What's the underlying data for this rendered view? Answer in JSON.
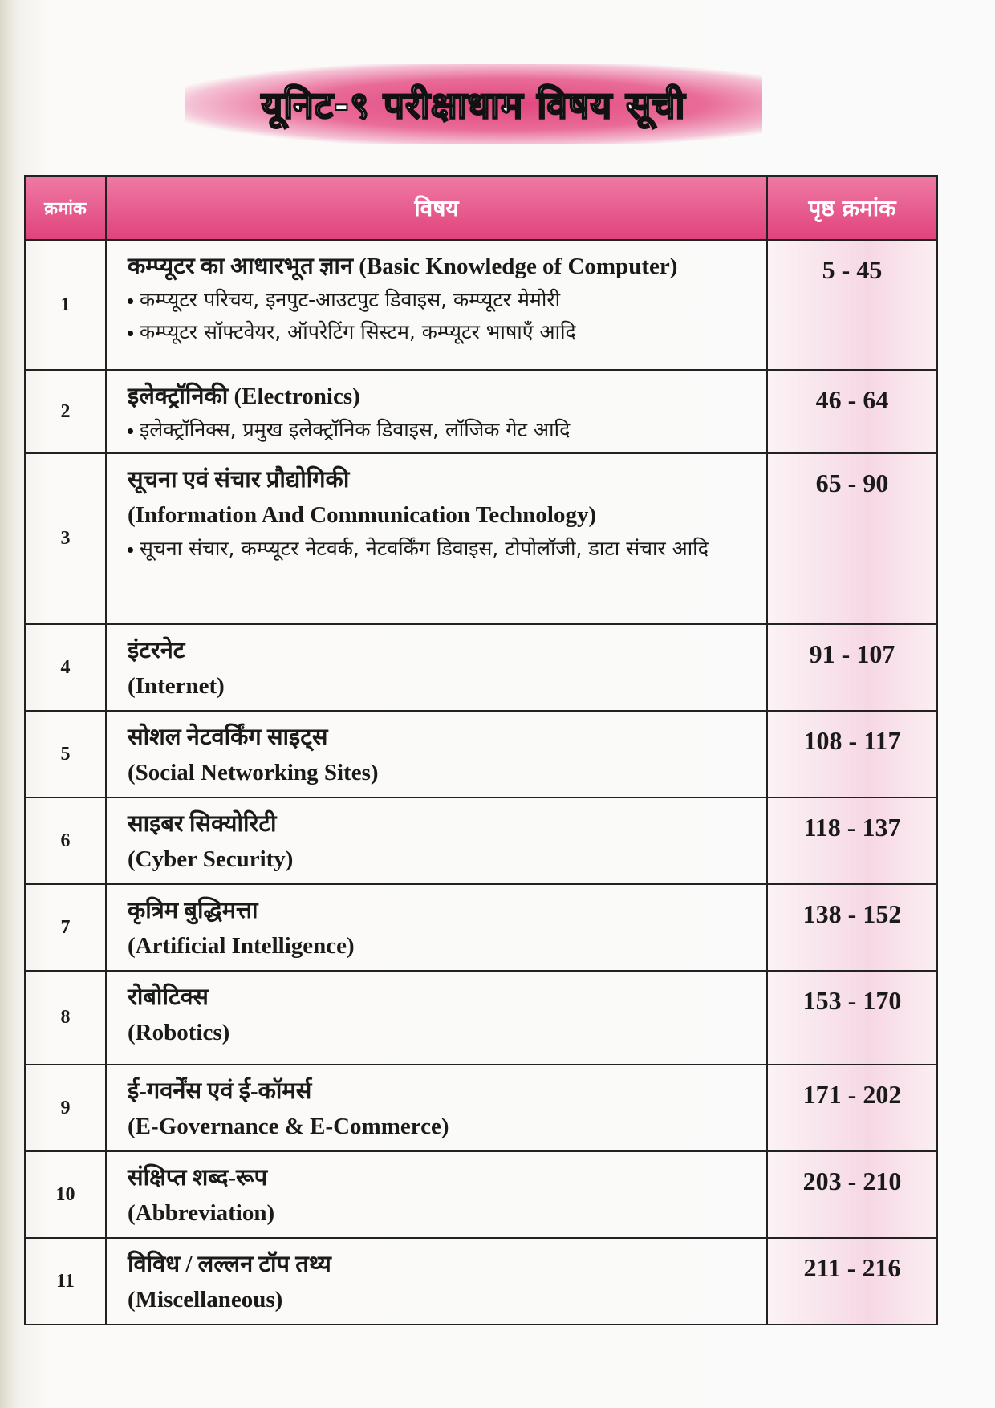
{
  "header": {
    "title": "यूनिट-९ परीक्षाधाम विषय सूची"
  },
  "table": {
    "headers": [
      "क्रमांक",
      "विषय",
      "पृष्ठ क्रमांक"
    ],
    "rows": [
      {
        "number": "1",
        "lines": [
          "कम्प्यूटर का आधारभूत ज्ञान (Basic Knowledge of Computer)"
        ],
        "bullets": [
          "कम्प्यूटर परिचय, इनपुट-आउटपुट डिवाइस, कम्प्यूटर मेमोरी",
          "कम्प्यूटर सॉफ्टवेयर, ऑपरेटिंग सिस्टम, कम्प्यूटर भाषाएँ आदि"
        ],
        "pages": "5 - 45"
      },
      {
        "number": "2",
        "lines": [
          "इलेक्ट्रॉनिकी (Electronics)"
        ],
        "bullets": [
          "इलेक्ट्रॉनिक्स, प्रमुख इलेक्ट्रॉनिक डिवाइस, लॉजिक गेट आदि"
        ],
        "pages": "46 - 64"
      },
      {
        "number": "3",
        "lines": [
          "सूचना एवं संचार प्रौद्योगिकी",
          "(Information And Communication Technology)"
        ],
        "bullets": [
          "सूचना संचार, कम्प्यूटर नेटवर्क, नेटवर्किंग डिवाइस, टोपोलॉजी, डाटा संचार आदि"
        ],
        "pages": "65 - 90"
      },
      {
        "number": "4",
        "lines": [
          "इंटरनेट",
          "(Internet)"
        ],
        "bullets": [],
        "pages": "91 - 107"
      },
      {
        "number": "5",
        "lines": [
          "सोशल नेटवर्किंग साइट्स",
          "(Social Networking Sites)"
        ],
        "bullets": [],
        "pages": "108 - 117"
      },
      {
        "number": "6",
        "lines": [
          "साइबर सिक्योरिटी",
          "(Cyber Security)"
        ],
        "bullets": [],
        "pages": "118 - 137"
      },
      {
        "number": "7",
        "lines": [
          "कृत्रिम बुद्धिमत्ता",
          "(Artificial Intelligence)"
        ],
        "bullets": [],
        "pages": "138 - 152"
      },
      {
        "number": "8",
        "lines": [
          "रोबोटिक्स",
          "(Robotics)"
        ],
        "bullets": [],
        "pages": "153 - 170"
      },
      {
        "number": "9",
        "lines": [
          "ई-गवर्नेंस एवं ई-कॉमर्स",
          "(E-Governance & E-Commerce)"
        ],
        "bullets": [],
        "pages": "171 - 202"
      },
      {
        "number": "10",
        "lines": [
          "संक्षिप्त शब्द-रूप",
          "(Abbreviation)"
        ],
        "bullets": [],
        "pages": "203 - 210"
      },
      {
        "number": "11",
        "lines": [
          "विविध / लल्लन टॉप तथ्य",
          "(Miscellaneous)"
        ],
        "bullets": [],
        "pages": "211 - 216"
      }
    ]
  }
}
